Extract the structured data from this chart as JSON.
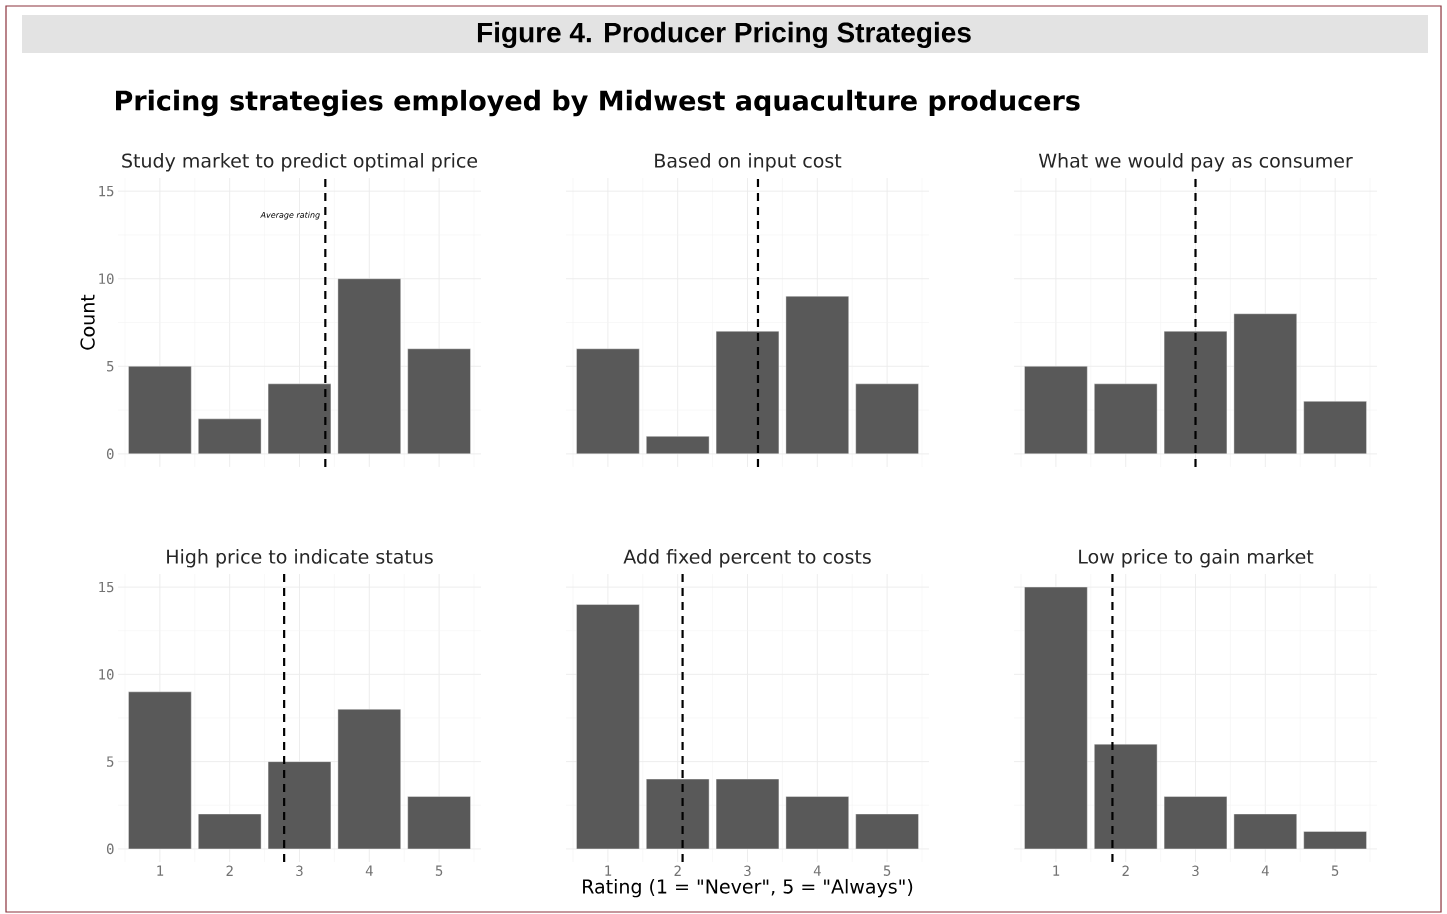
{
  "chart_data": [
    {
      "type": "other",
      "title": "Figure 4. Producer Pricing Strategies",
      "subtitle": "Pricing strategies employed by Midwest aquaculture producers"
    },
    {
      "type": "bar",
      "title": "Study market to predict optimal price",
      "ylabel": "Count",
      "x": [
        1,
        2,
        3,
        4,
        5
      ],
      "values": [
        5,
        2,
        4,
        10,
        6
      ],
      "color": "#595959",
      "xlim": [
        0.4,
        5.6
      ],
      "ylim": [
        -0.75,
        15.75
      ],
      "xticks": [
        1,
        2,
        3,
        4,
        5
      ],
      "yticks": [
        0,
        5,
        10,
        15
      ],
      "grid": true,
      "tick_labels": "y",
      "ref_lines": [
        {
          "axis": "x",
          "value": 3.37,
          "label": "Average rating",
          "color": "#000000",
          "line_style": "dashed"
        }
      ]
    },
    {
      "type": "bar",
      "title": "Based on input cost",
      "x": [
        1,
        2,
        3,
        4,
        5
      ],
      "values": [
        6,
        1,
        7,
        9,
        4
      ],
      "color": "#595959",
      "xlim": [
        0.4,
        5.6
      ],
      "ylim": [
        -0.75,
        15.75
      ],
      "xticks": [
        1,
        2,
        3,
        4,
        5
      ],
      "yticks": [
        0,
        5,
        10,
        15
      ],
      "grid": true,
      "tick_labels": false,
      "ref_lines": [
        {
          "axis": "x",
          "value": 3.15,
          "color": "#000000",
          "line_style": "dashed"
        }
      ]
    },
    {
      "type": "bar",
      "title": "What we would pay as consumer",
      "x": [
        1,
        2,
        3,
        4,
        5
      ],
      "values": [
        5,
        4,
        7,
        8,
        3
      ],
      "color": "#595959",
      "xlim": [
        0.4,
        5.6
      ],
      "ylim": [
        -0.75,
        15.75
      ],
      "xticks": [
        1,
        2,
        3,
        4,
        5
      ],
      "yticks": [
        0,
        5,
        10,
        15
      ],
      "grid": true,
      "tick_labels": false,
      "ref_lines": [
        {
          "axis": "x",
          "value": 3.0,
          "color": "#000000",
          "line_style": "dashed"
        }
      ]
    },
    {
      "type": "bar",
      "title": "High price to indicate status",
      "x": [
        1,
        2,
        3,
        4,
        5
      ],
      "values": [
        9,
        2,
        5,
        8,
        3
      ],
      "color": "#595959",
      "xlim": [
        0.4,
        5.6
      ],
      "ylim": [
        -0.75,
        15.75
      ],
      "xticks": [
        1,
        2,
        3,
        4,
        5
      ],
      "yticks": [
        0,
        5,
        10,
        15
      ],
      "grid": true,
      "ref_lines": [
        {
          "axis": "x",
          "value": 2.78,
          "color": "#000000",
          "line_style": "dashed"
        }
      ]
    },
    {
      "type": "bar",
      "title": "Add fixed percent to costs",
      "xlabel": "Rating (1 = \"Never\", 5 = \"Always\")",
      "x": [
        1,
        2,
        3,
        4,
        5
      ],
      "values": [
        14,
        4,
        4,
        3,
        2
      ],
      "color": "#595959",
      "xlim": [
        0.4,
        5.6
      ],
      "ylim": [
        -0.75,
        15.75
      ],
      "xticks": [
        1,
        2,
        3,
        4,
        5
      ],
      "yticks": [
        0,
        5,
        10,
        15
      ],
      "grid": true,
      "tick_labels": "x",
      "ref_lines": [
        {
          "axis": "x",
          "value": 2.07,
          "color": "#000000",
          "line_style": "dashed"
        }
      ]
    },
    {
      "type": "bar",
      "title": "Low price to gain market",
      "x": [
        1,
        2,
        3,
        4,
        5
      ],
      "values": [
        15,
        6,
        3,
        2,
        1
      ],
      "color": "#595959",
      "xlim": [
        0.4,
        5.6
      ],
      "ylim": [
        -0.75,
        15.75
      ],
      "xticks": [
        1,
        2,
        3,
        4,
        5
      ],
      "yticks": [
        0,
        5,
        10,
        15
      ],
      "grid": true,
      "tick_labels": "x",
      "ref_lines": [
        {
          "axis": "x",
          "value": 1.81,
          "color": "#000000",
          "line_style": "dashed"
        }
      ]
    }
  ]
}
